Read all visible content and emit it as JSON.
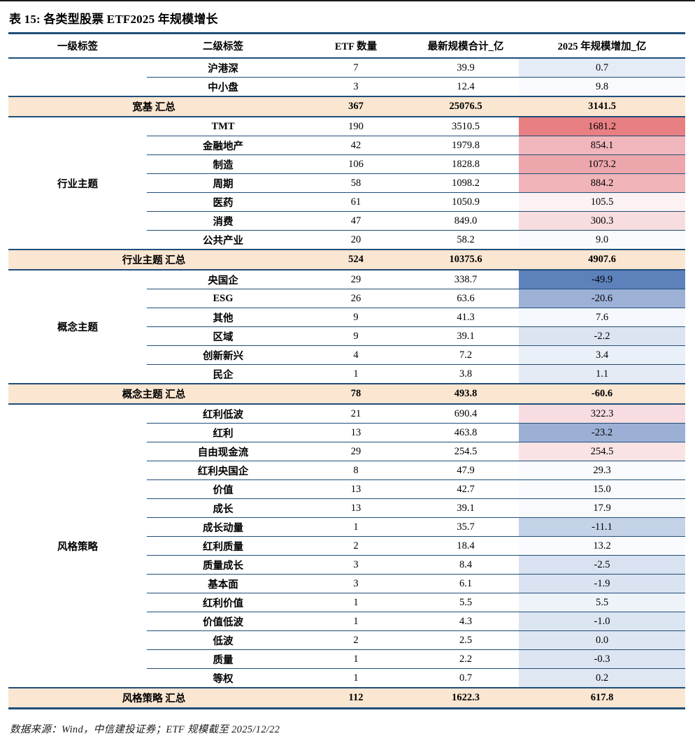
{
  "title": "表 15: 各类型股票 ETF2025 年规模增长",
  "columns": [
    "一级标签",
    "二级标签",
    "ETF 数量",
    "最新规模合计_亿",
    "2025 年规模增加_亿"
  ],
  "groups": [
    {
      "name": "",
      "rows": [
        {
          "label": "沪港深",
          "count": "7",
          "scale": "39.9",
          "change": "0.7",
          "change_bg": "#e6ecf6"
        },
        {
          "label": "中小盘",
          "count": "3",
          "scale": "12.4",
          "change": "9.8",
          "change_bg": "#f8fafd"
        }
      ],
      "summary": {
        "label": "宽基 汇总",
        "count": "367",
        "scale": "25076.5",
        "change": "3141.5"
      }
    },
    {
      "name": "行业主题",
      "rows": [
        {
          "label": "TMT",
          "count": "190",
          "scale": "3510.5",
          "change": "1681.2",
          "change_bg": "#e87f83"
        },
        {
          "label": "金融地产",
          "count": "42",
          "scale": "1979.8",
          "change": "854.1",
          "change_bg": "#f0b6bb"
        },
        {
          "label": "制造",
          "count": "106",
          "scale": "1828.8",
          "change": "1073.2",
          "change_bg": "#eda7ac"
        },
        {
          "label": "周期",
          "count": "58",
          "scale": "1098.2",
          "change": "884.2",
          "change_bg": "#f0b4b9"
        },
        {
          "label": "医药",
          "count": "61",
          "scale": "1050.9",
          "change": "105.5",
          "change_bg": "#fcf1f3"
        },
        {
          "label": "消费",
          "count": "47",
          "scale": "849.0",
          "change": "300.3",
          "change_bg": "#f7dde0"
        },
        {
          "label": "公共产业",
          "count": "20",
          "scale": "58.2",
          "change": "9.0",
          "change_bg": "#f8fafd"
        }
      ],
      "summary": {
        "label": "行业主题 汇总",
        "count": "524",
        "scale": "10375.6",
        "change": "4907.6"
      }
    },
    {
      "name": "概念主题",
      "rows": [
        {
          "label": "央国企",
          "count": "29",
          "scale": "338.7",
          "change": "-49.9",
          "change_bg": "#5d81bb"
        },
        {
          "label": "ESG",
          "count": "26",
          "scale": "63.6",
          "change": "-20.6",
          "change_bg": "#9db0d6"
        },
        {
          "label": "其他",
          "count": "9",
          "scale": "41.3",
          "change": "7.6",
          "change_bg": "#f5f8fc"
        },
        {
          "label": "区域",
          "count": "9",
          "scale": "39.1",
          "change": "-2.2",
          "change_bg": "#dce4f2"
        },
        {
          "label": "创新新兴",
          "count": "4",
          "scale": "7.2",
          "change": "3.4",
          "change_bg": "#eaf0f8"
        },
        {
          "label": "民企",
          "count": "1",
          "scale": "3.8",
          "change": "1.1",
          "change_bg": "#e5ebf5"
        }
      ],
      "summary": {
        "label": "概念主题 汇总",
        "count": "78",
        "scale": "493.8",
        "change": "-60.6"
      }
    },
    {
      "name": "风格策略",
      "rows": [
        {
          "label": "红利低波",
          "count": "21",
          "scale": "690.4",
          "change": "322.3",
          "change_bg": "#f7dde1"
        },
        {
          "label": "红利",
          "count": "13",
          "scale": "463.8",
          "change": "-23.2",
          "change_bg": "#9cafd5"
        },
        {
          "label": "自由现金流",
          "count": "29",
          "scale": "254.5",
          "change": "254.5",
          "change_bg": "#f9e3e5"
        },
        {
          "label": "红利央国企",
          "count": "8",
          "scale": "47.9",
          "change": "29.3",
          "change_bg": "#fafbfe"
        },
        {
          "label": "价值",
          "count": "13",
          "scale": "42.7",
          "change": "15.0",
          "change_bg": "#f8fafd"
        },
        {
          "label": "成长",
          "count": "13",
          "scale": "39.1",
          "change": "17.9",
          "change_bg": "#f9fafd"
        },
        {
          "label": "成长动量",
          "count": "1",
          "scale": "35.7",
          "change": "-11.1",
          "change_bg": "#c5d3e9"
        },
        {
          "label": "红利质量",
          "count": "2",
          "scale": "18.4",
          "change": "13.2",
          "change_bg": "#f9fbfe"
        },
        {
          "label": "质量成长",
          "count": "3",
          "scale": "8.4",
          "change": "-2.5",
          "change_bg": "#d9e2f0"
        },
        {
          "label": "基本面",
          "count": "3",
          "scale": "6.1",
          "change": "-1.9",
          "change_bg": "#dae3f1"
        },
        {
          "label": "红利价值",
          "count": "1",
          "scale": "5.5",
          "change": "5.5",
          "change_bg": "#eef3fa"
        },
        {
          "label": "价值低波",
          "count": "1",
          "scale": "4.3",
          "change": "-1.0",
          "change_bg": "#dce5f2"
        },
        {
          "label": "低波",
          "count": "2",
          "scale": "2.5",
          "change": "0.0",
          "change_bg": "#dee6f3"
        },
        {
          "label": "质量",
          "count": "1",
          "scale": "2.2",
          "change": "-0.3",
          "change_bg": "#dde5f2"
        },
        {
          "label": "等权",
          "count": "1",
          "scale": "0.7",
          "change": "0.2",
          "change_bg": "#dfe7f3"
        }
      ],
      "summary": {
        "label": "风格策略 汇总",
        "count": "112",
        "scale": "1622.3",
        "change": "617.8"
      }
    }
  ],
  "footer": "数据来源：Wind，中信建投证券；ETF 规模截至 2025/12/22",
  "colors": {
    "border_navy": "#1f4e79",
    "summary_row_bg": "#fbe6d1",
    "max_increase_red": "#e87f83",
    "min_decrease_blue": "#5d81bb"
  }
}
